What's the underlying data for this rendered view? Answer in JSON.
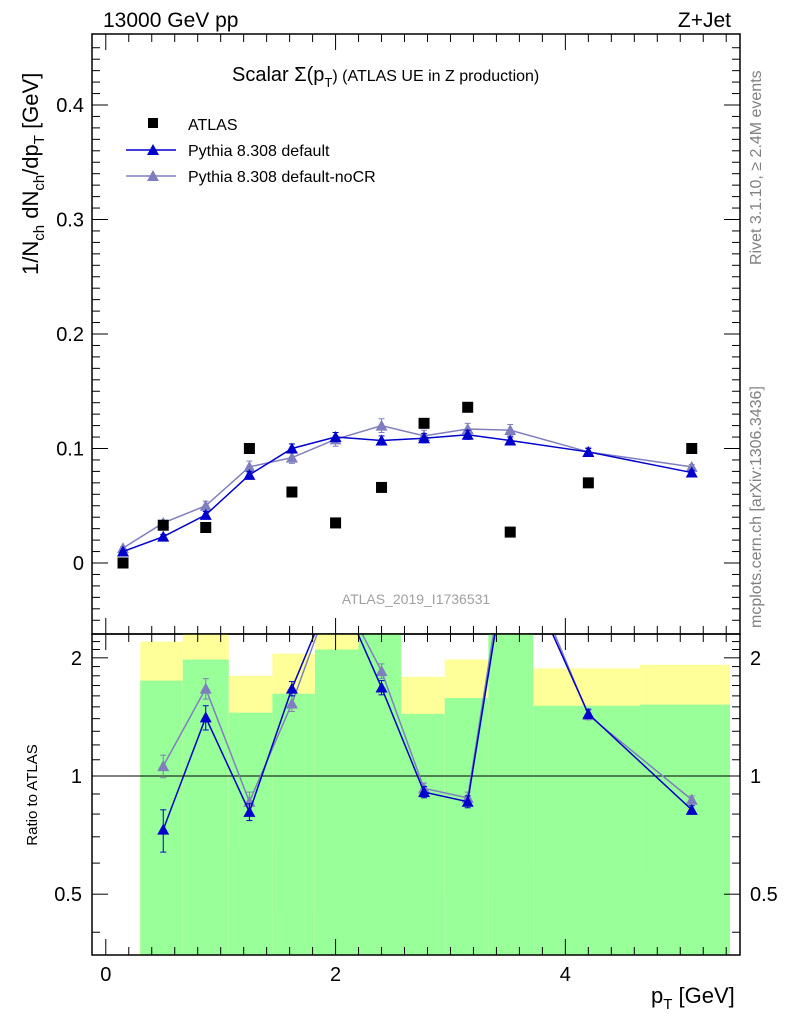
{
  "header": {
    "left": "13000 GeV pp",
    "right": "Z+Jet"
  },
  "side_texts": {
    "rivet": "Rivet 3.1.10, ≥ 2.4M events",
    "mcplots": "mcplots.cern.ch [arXiv:1306.3436]"
  },
  "colors": {
    "data": "#000000",
    "default": "#0000cc",
    "noCR": "#7f7fbf",
    "band_inner": "#99ff99",
    "band_outer": "#ffff99"
  },
  "chart_data": [
    {
      "type": "scatter",
      "title_main": "Scalar Σ(p",
      "title_sub": "T",
      "title_rest": ") (ATLAS UE in Z production)",
      "ylabel": "1/N_ch dN_ch/dp_T [GeV]",
      "ylabel_parts": [
        "1/N",
        "ch",
        " dN",
        "ch",
        "/dp",
        "T",
        " [GeV]"
      ],
      "analysis_label": "ATLAS_2019_I1736531",
      "xlim": [
        -0.12,
        5.52
      ],
      "ylim": [
        -0.062,
        0.462
      ],
      "yticks": [
        0,
        0.1,
        0.2,
        0.3,
        0.4
      ],
      "ytick_labels": [
        "0",
        "0.1",
        "0.2",
        "0.3",
        "0.4"
      ],
      "legend": [
        {
          "key": "data",
          "label": "ATLAS",
          "marker": "square"
        },
        {
          "key": "default",
          "label": "Pythia 8.308 default",
          "marker": "triangle"
        },
        {
          "key": "noCR",
          "label": "Pythia 8.308 default-noCR",
          "marker": "triangle"
        }
      ],
      "series": [
        {
          "name": "ATLAS",
          "x": [
            0.15,
            0.5,
            0.87,
            1.25,
            1.62,
            2.0,
            2.4,
            2.77,
            3.15,
            3.52,
            4.2,
            5.1
          ],
          "y": [
            0.0,
            0.033,
            0.031,
            0.1,
            0.062,
            0.035,
            0.066,
            0.122,
            0.136,
            0.027,
            0.07,
            0.1
          ]
        },
        {
          "name": "Pythia 8.308 default",
          "x": [
            0.15,
            0.5,
            0.87,
            1.25,
            1.62,
            2.0,
            2.4,
            2.77,
            3.15,
            3.52,
            4.2,
            5.1
          ],
          "y": [
            0.01,
            0.023,
            0.042,
            0.077,
            0.1,
            0.11,
            0.107,
            0.109,
            0.112,
            0.107,
            0.097,
            0.079
          ],
          "err": [
            0.001,
            0.002,
            0.003,
            0.003,
            0.004,
            0.004,
            0.004,
            0.004,
            0.004,
            0.003,
            0.003,
            0.002
          ]
        },
        {
          "name": "Pythia 8.308 default-noCR",
          "x": [
            0.15,
            0.5,
            0.87,
            1.25,
            1.62,
            2.0,
            2.4,
            2.77,
            3.15,
            3.52,
            4.2,
            5.1
          ],
          "y": [
            0.013,
            0.035,
            0.05,
            0.084,
            0.092,
            0.108,
            0.12,
            0.111,
            0.117,
            0.116,
            0.097,
            0.084
          ],
          "err": [
            0.001,
            0.002,
            0.004,
            0.005,
            0.005,
            0.006,
            0.006,
            0.005,
            0.005,
            0.005,
            0.004,
            0.002
          ]
        }
      ]
    },
    {
      "type": "line",
      "ylabel": "Ratio to ATLAS",
      "xlabel": "p_T [GeV]",
      "xlabel_parts": [
        "p",
        "T",
        " [GeV]"
      ],
      "xlim": [
        -0.12,
        5.52
      ],
      "ylim": [
        0.35,
        2.3
      ],
      "yscale": "log",
      "yticks": [
        0.5,
        1,
        2
      ],
      "ytick_labels": [
        "0.5",
        "1",
        "2"
      ],
      "xticks": [
        0,
        2,
        4
      ],
      "xtick_labels": [
        "0",
        "2",
        "4"
      ],
      "bands": {
        "edges": [
          0.3,
          0.67,
          1.07,
          1.45,
          1.82,
          2.2,
          2.57,
          2.95,
          3.33,
          3.72,
          4.65,
          5.57
        ],
        "inner": [
          [
            0.35,
            1.75
          ],
          [
            0.35,
            1.98
          ],
          [
            0.35,
            1.45
          ],
          [
            0.35,
            1.62
          ],
          [
            0.35,
            2.1
          ],
          [
            0.35,
            2.3
          ],
          [
            0.35,
            1.44
          ],
          [
            0.35,
            1.58
          ],
          [
            0.35,
            2.3
          ],
          [
            0.35,
            1.51
          ],
          [
            0.35,
            1.52
          ]
        ],
        "outer": [
          [
            0.35,
            2.2
          ],
          [
            0.35,
            2.3
          ],
          [
            0.65,
            1.8
          ],
          [
            0.45,
            2.05
          ],
          [
            0.35,
            2.3
          ],
          [
            0.35,
            2.3
          ],
          [
            0.67,
            1.79
          ],
          [
            0.5,
            1.98
          ],
          [
            0.35,
            2.3
          ],
          [
            0.59,
            1.88
          ],
          [
            0.56,
            1.92
          ]
        ]
      },
      "series": [
        {
          "name": "Pythia 8.308 default",
          "x": [
            0.5,
            0.87,
            1.25,
            1.62,
            2.0,
            2.4,
            2.77,
            3.15,
            3.52,
            4.2,
            5.1
          ],
          "y": [
            0.73,
            1.41,
            0.81,
            1.67,
            3.1,
            1.68,
            0.91,
            0.86,
            4.0,
            1.44,
            0.82
          ],
          "err": [
            0.09,
            0.1,
            0.04,
            0.07,
            0.0,
            0.07,
            0.03,
            0.03,
            0.0,
            0.04,
            0.02
          ]
        },
        {
          "name": "Pythia 8.308 default-noCR",
          "x": [
            0.5,
            0.87,
            1.25,
            1.62,
            2.0,
            2.4,
            2.77,
            3.15,
            3.52,
            4.2,
            5.1
          ],
          "y": [
            1.06,
            1.67,
            0.86,
            1.53,
            3.1,
            1.85,
            0.93,
            0.88,
            4.3,
            1.43,
            0.87
          ],
          "err": [
            0.07,
            0.1,
            0.05,
            0.07,
            0.0,
            0.08,
            0.03,
            0.03,
            0.0,
            0.04,
            0.02
          ]
        }
      ]
    }
  ]
}
